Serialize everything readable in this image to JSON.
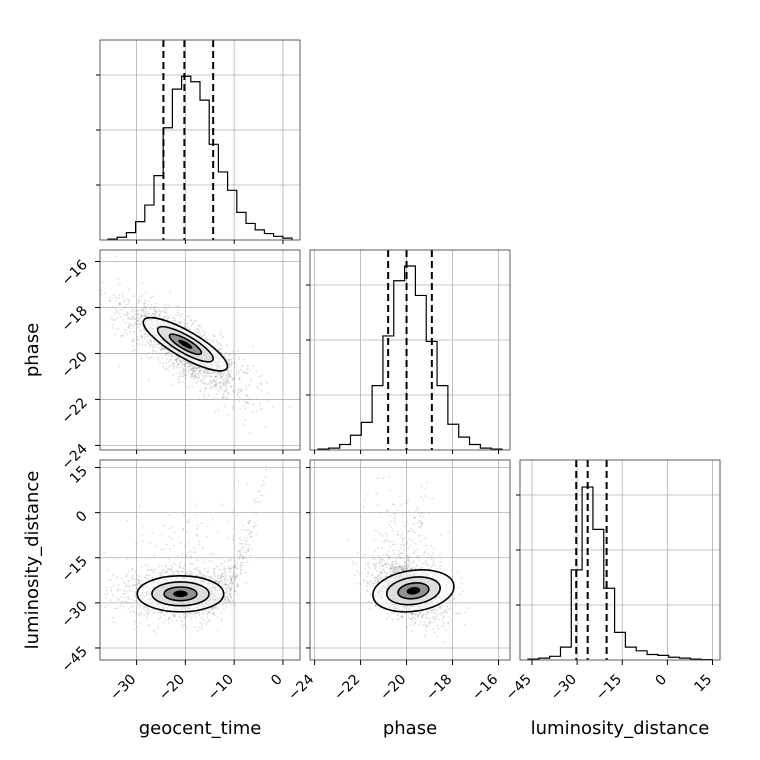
{
  "chart_data": {
    "type": "corner",
    "parameters": [
      "geocent_time",
      "phase",
      "luminosity_distance"
    ],
    "axis_labels": [
      "geocent_time",
      "phase",
      "luminosity_distance"
    ],
    "ticks": {
      "geocent_time": [
        -30,
        -20,
        -10,
        0
      ],
      "phase": [
        -24,
        -22,
        -20,
        -18,
        -16
      ],
      "luminosity_distance": [
        -45,
        -30,
        -15,
        0,
        15
      ]
    },
    "tick_labels": {
      "geocent_time": [
        "−30",
        "−20",
        "−10",
        "0"
      ],
      "phase": [
        "−24",
        "−22",
        "−20",
        "−18",
        "−16"
      ],
      "luminosity_distance": [
        "−45",
        "−30",
        "−15",
        "0",
        "15"
      ]
    },
    "ranges": {
      "geocent_time": [
        -37.5,
        3.5
      ],
      "phase": [
        -24.2,
        -15.5
      ],
      "luminosity_distance": [
        -49,
        17.5
      ]
    },
    "quantiles": {
      "geocent_time": [
        -24.5,
        -20.2,
        -14.3
      ],
      "phase": [
        -20.8,
        -20.0,
        -18.9
      ],
      "luminosity_distance": [
        -30.3,
        -26.5,
        -20.2
      ]
    },
    "histograms": {
      "geocent_time": [
        0.005,
        0.015,
        0.04,
        0.1,
        0.19,
        0.35,
        0.61,
        0.82,
        0.89,
        0.86,
        0.76,
        0.52,
        0.37,
        0.27,
        0.15,
        0.09,
        0.055,
        0.035,
        0.02,
        0.01
      ],
      "phase": [
        0.005,
        0.01,
        0.03,
        0.08,
        0.15,
        0.35,
        0.62,
        0.92,
        1.0,
        0.84,
        0.59,
        0.35,
        0.14,
        0.07,
        0.03,
        0.01,
        0.005
      ],
      "luminosity_distance": [
        0.005,
        0.01,
        0.02,
        0.07,
        0.49,
        0.94,
        0.71,
        0.39,
        0.15,
        0.07,
        0.05,
        0.03,
        0.025,
        0.015,
        0.01,
        0.005,
        0.002
      ]
    },
    "grid": true
  }
}
